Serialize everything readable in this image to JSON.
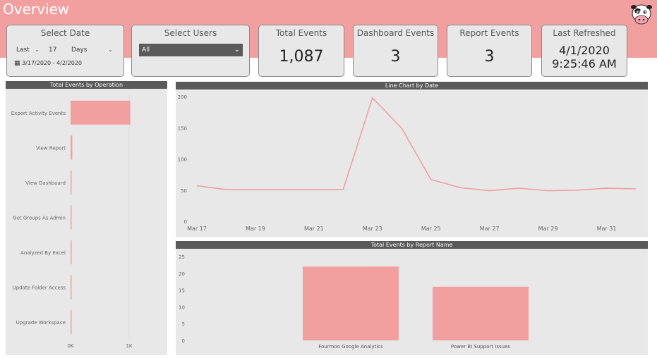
{
  "header": {
    "title": "Overview",
    "logo_icon": "cow-icon"
  },
  "filters": {
    "date": {
      "label": "Select Date",
      "relative": "Last",
      "count": "17",
      "unit": "Days",
      "range": "3/17/2020 - 4/2/2020"
    },
    "users": {
      "label": "Select Users",
      "value": "All"
    }
  },
  "kpis": [
    {
      "label": "Total Events",
      "value": "1,087"
    },
    {
      "label": "Dashboard Events",
      "value": "3"
    },
    {
      "label": "Report Events",
      "value": "3"
    }
  ],
  "refreshed": {
    "label": "Last Refreshed",
    "date": "4/1/2020",
    "time": "9:25:46 AM"
  },
  "colors": {
    "accent": "#f29f9f",
    "panel": "#e8e8e8",
    "header": "#5a5a5a"
  },
  "chart_data": [
    {
      "type": "bar",
      "orientation": "horizontal",
      "title": "Total Events by Operation",
      "categories": [
        "Export Activity Events",
        "View Report",
        "View Dashboard",
        "Get Groups As Admin",
        "Analyzed By Excel",
        "Update Folder Access",
        "Upgrade Workspace"
      ],
      "values": [
        1020,
        30,
        18,
        6,
        4,
        3,
        2
      ],
      "xlim": [
        0,
        1000
      ],
      "xticks": [
        "0K",
        "1K"
      ]
    },
    {
      "type": "line",
      "title": "Line Chart by Date",
      "x": [
        "Mar 17",
        "Mar 18",
        "Mar 19",
        "Mar 20",
        "Mar 21",
        "Mar 22",
        "Mar 23",
        "Mar 24",
        "Mar 25",
        "Mar 26",
        "Mar 27",
        "Mar 28",
        "Mar 29",
        "Mar 30",
        "Mar 31",
        "Apr 1"
      ],
      "y": [
        57,
        51,
        51,
        51,
        51,
        51,
        198,
        149,
        67,
        54,
        49,
        53,
        49,
        50,
        53,
        52
      ],
      "xticks": [
        "Mar 17",
        "Mar 19",
        "Mar 21",
        "Mar 23",
        "Mar 25",
        "Mar 27",
        "Mar 29",
        "Mar 31"
      ],
      "yticks": [
        0,
        50,
        100,
        150,
        200
      ],
      "ylim": [
        0,
        200
      ]
    },
    {
      "type": "bar",
      "title": "Total Events by Report Name",
      "categories": [
        "Fourmoo Google Analytics",
        "Power BI Support Issues"
      ],
      "values": [
        22,
        16
      ],
      "yticks": [
        0,
        5,
        10,
        15,
        20,
        25
      ],
      "ylim": [
        0,
        25
      ]
    }
  ]
}
